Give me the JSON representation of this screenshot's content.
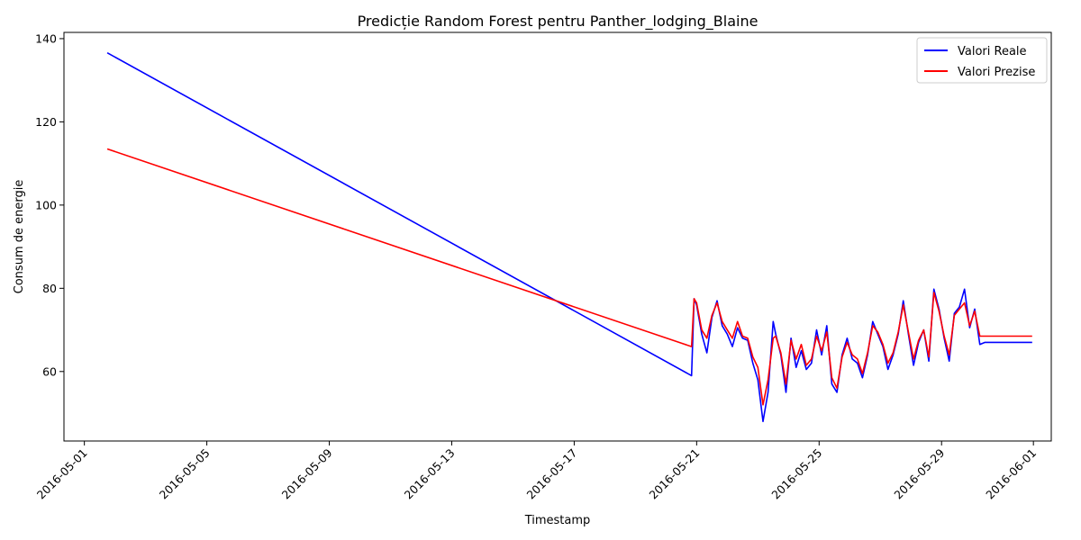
{
  "chart_data": {
    "type": "line",
    "title": "Predicție Random Forest pentru Panther_lodging_Blaine",
    "xlabel": "Timestamp",
    "ylabel": "Consum de energie",
    "xlim": [
      "2016-04-30T08:00",
      "2016-06-01T14:00"
    ],
    "ylim": [
      43.3,
      141.5
    ],
    "x_ticks": [
      "2016-05-01",
      "2016-05-05",
      "2016-05-09",
      "2016-05-13",
      "2016-05-17",
      "2016-05-21",
      "2016-05-25",
      "2016-05-29",
      "2016-06-01"
    ],
    "y_ticks": [
      60,
      80,
      100,
      120,
      140
    ],
    "grid": false,
    "legend_position": "top-right",
    "series": [
      {
        "name": "Valori Reale",
        "color": "#0000ff",
        "x": [
          "2016-05-01T18:00",
          "2016-05-20T20:00",
          "2016-05-20T22:00",
          "2016-05-21T00:00",
          "2016-05-21T04:00",
          "2016-05-21T08:00",
          "2016-05-21T12:00",
          "2016-05-21T16:00",
          "2016-05-21T20:00",
          "2016-05-22T00:00",
          "2016-05-22T04:00",
          "2016-05-22T08:00",
          "2016-05-22T12:00",
          "2016-05-22T16:00",
          "2016-05-22T20:00",
          "2016-05-23T00:00",
          "2016-05-23T04:00",
          "2016-05-23T08:00",
          "2016-05-23T12:00",
          "2016-05-23T14:00",
          "2016-05-23T18:00",
          "2016-05-23T22:00",
          "2016-05-24T02:00",
          "2016-05-24T06:00",
          "2016-05-24T10:00",
          "2016-05-24T14:00",
          "2016-05-24T18:00",
          "2016-05-24T22:00",
          "2016-05-25T02:00",
          "2016-05-25T06:00",
          "2016-05-25T10:00",
          "2016-05-25T14:00",
          "2016-05-25T18:00",
          "2016-05-25T22:00",
          "2016-05-26T02:00",
          "2016-05-26T06:00",
          "2016-05-26T10:00",
          "2016-05-26T14:00",
          "2016-05-26T18:00",
          "2016-05-26T22:00",
          "2016-05-27T02:00",
          "2016-05-27T06:00",
          "2016-05-27T10:00",
          "2016-05-27T14:00",
          "2016-05-27T18:00",
          "2016-05-27T22:00",
          "2016-05-28T02:00",
          "2016-05-28T06:00",
          "2016-05-28T10:00",
          "2016-05-28T14:00",
          "2016-05-28T18:00",
          "2016-05-28T22:00",
          "2016-05-29T02:00",
          "2016-05-29T06:00",
          "2016-05-29T10:00",
          "2016-05-29T14:00",
          "2016-05-29T18:00",
          "2016-05-29T22:00",
          "2016-05-30T02:00",
          "2016-05-30T06:00",
          "2016-05-30T10:00",
          "2016-05-30T14:00",
          "2016-05-30T18:00",
          "2016-05-30T22:00",
          "2016-05-31T02:00",
          "2016-05-31T06:00",
          "2016-05-31T08:00",
          "2016-05-31T12:00",
          "2016-05-31T16:00",
          "2016-05-31T19:00",
          "2016-05-31T23:00"
        ],
        "y": [
          136.6,
          59.0,
          77.5,
          76.0,
          69.0,
          64.5,
          73.0,
          77.0,
          71.0,
          69.0,
          66.0,
          70.5,
          68.0,
          67.5,
          62.0,
          58.0,
          48.0,
          55.0,
          72.0,
          69.0,
          64.0,
          55.0,
          68.0,
          61.0,
          65.0,
          60.5,
          62.0,
          70.0,
          64.0,
          71.0,
          57.0,
          55.0,
          64.0,
          68.0,
          63.0,
          62.0,
          58.5,
          64.0,
          72.0,
          69.0,
          66.0,
          60.5,
          64.0,
          69.0,
          77.0,
          69.0,
          61.5,
          67.0,
          70.0,
          62.5,
          79.8,
          75.0,
          68.0,
          62.5,
          74.0,
          75.5,
          79.8,
          70.5,
          75.0,
          66.5,
          67.0,
          67.0,
          67.0,
          67.0,
          67.0,
          67.0,
          67.0,
          67.0,
          67.0,
          67.0,
          67.0
        ]
      },
      {
        "name": "Valori Prezise",
        "color": "#ff0000",
        "x": [
          "2016-05-01T18:00",
          "2016-05-20T20:00",
          "2016-05-20T22:00",
          "2016-05-21T00:00",
          "2016-05-21T04:00",
          "2016-05-21T08:00",
          "2016-05-21T12:00",
          "2016-05-21T16:00",
          "2016-05-21T20:00",
          "2016-05-22T00:00",
          "2016-05-22T04:00",
          "2016-05-22T08:00",
          "2016-05-22T12:00",
          "2016-05-22T16:00",
          "2016-05-22T20:00",
          "2016-05-23T00:00",
          "2016-05-23T04:00",
          "2016-05-23T08:00",
          "2016-05-23T12:00",
          "2016-05-23T14:00",
          "2016-05-23T18:00",
          "2016-05-23T22:00",
          "2016-05-24T02:00",
          "2016-05-24T06:00",
          "2016-05-24T10:00",
          "2016-05-24T14:00",
          "2016-05-24T18:00",
          "2016-05-24T22:00",
          "2016-05-25T02:00",
          "2016-05-25T06:00",
          "2016-05-25T10:00",
          "2016-05-25T14:00",
          "2016-05-25T18:00",
          "2016-05-25T22:00",
          "2016-05-26T02:00",
          "2016-05-26T06:00",
          "2016-05-26T10:00",
          "2016-05-26T14:00",
          "2016-05-26T18:00",
          "2016-05-26T22:00",
          "2016-05-27T02:00",
          "2016-05-27T06:00",
          "2016-05-27T10:00",
          "2016-05-27T14:00",
          "2016-05-27T18:00",
          "2016-05-27T22:00",
          "2016-05-28T02:00",
          "2016-05-28T06:00",
          "2016-05-28T10:00",
          "2016-05-28T14:00",
          "2016-05-28T18:00",
          "2016-05-28T22:00",
          "2016-05-29T02:00",
          "2016-05-29T06:00",
          "2016-05-29T10:00",
          "2016-05-29T14:00",
          "2016-05-29T18:00",
          "2016-05-29T22:00",
          "2016-05-30T02:00",
          "2016-05-30T06:00",
          "2016-05-30T10:00",
          "2016-05-30T14:00",
          "2016-05-30T18:00",
          "2016-05-30T22:00",
          "2016-05-31T02:00",
          "2016-05-31T06:00",
          "2016-05-31T08:00",
          "2016-05-31T12:00",
          "2016-05-31T16:00",
          "2016-05-31T19:00",
          "2016-05-31T23:00"
        ],
        "y": [
          113.5,
          66.0,
          77.5,
          76.5,
          70.0,
          68.0,
          73.5,
          76.5,
          72.0,
          70.0,
          68.0,
          72.0,
          68.5,
          68.0,
          63.5,
          61.0,
          52.0,
          58.0,
          68.0,
          68.5,
          64.5,
          57.0,
          67.5,
          63.0,
          66.5,
          61.5,
          63.0,
          68.5,
          65.0,
          69.5,
          58.5,
          56.0,
          63.5,
          67.0,
          64.0,
          63.0,
          59.5,
          64.5,
          71.0,
          69.5,
          66.5,
          62.0,
          64.5,
          69.5,
          76.0,
          69.5,
          63.0,
          67.5,
          70.0,
          63.5,
          79.0,
          74.5,
          68.5,
          64.0,
          73.5,
          75.0,
          76.5,
          71.0,
          74.5,
          68.5,
          68.5,
          68.5,
          68.5,
          68.5,
          68.5,
          68.5,
          68.5,
          68.5,
          68.5,
          68.5,
          68.5
        ]
      }
    ]
  }
}
